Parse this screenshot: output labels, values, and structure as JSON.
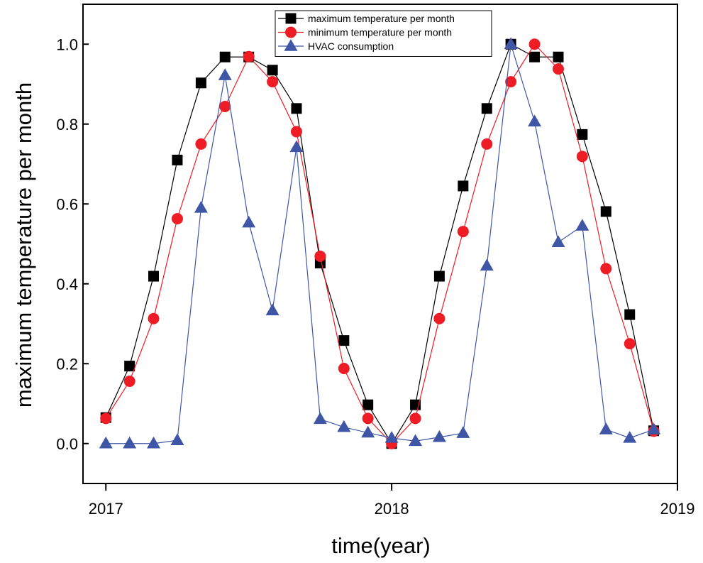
{
  "chart_data": {
    "type": "line",
    "title": "",
    "xlabel": "time(year)",
    "ylabel": "maximum temperature per month",
    "xlim": [
      2016.92,
      2019.0
    ],
    "ylim": [
      -0.1,
      1.1
    ],
    "x_ticks": [
      2017,
      2018,
      2019
    ],
    "x_tick_labels": [
      "2017",
      "2018",
      "2019"
    ],
    "y_ticks": [
      0.0,
      0.2,
      0.4,
      0.6,
      0.8,
      1.0
    ],
    "y_tick_labels": [
      "0.0",
      "0.2",
      "0.4",
      "0.6",
      "0.8",
      "1.0"
    ],
    "grid": false,
    "legend_position": "top-center",
    "x": [
      2017.0,
      2017.083,
      2017.167,
      2017.25,
      2017.333,
      2017.417,
      2017.5,
      2017.583,
      2017.667,
      2017.75,
      2017.833,
      2017.917,
      2018.0,
      2018.083,
      2018.167,
      2018.25,
      2018.333,
      2018.417,
      2018.5,
      2018.583,
      2018.667,
      2018.75,
      2018.833,
      2018.917
    ],
    "series": [
      {
        "name": "maximum temperature per month",
        "color": "#000000",
        "marker": "square",
        "values": [
          0.065,
          0.194,
          0.419,
          0.71,
          0.903,
          0.968,
          0.968,
          0.935,
          0.839,
          0.452,
          0.258,
          0.097,
          0.0,
          0.097,
          0.419,
          0.645,
          0.839,
          1.0,
          0.968,
          0.968,
          0.774,
          0.581,
          0.323,
          0.032
        ]
      },
      {
        "name": "minimum temperature per month",
        "color": "#ee1c25",
        "marker": "circle",
        "values": [
          0.063,
          0.156,
          0.313,
          0.563,
          0.75,
          0.844,
          0.969,
          0.906,
          0.781,
          0.469,
          0.188,
          0.063,
          0.0,
          0.063,
          0.313,
          0.531,
          0.75,
          0.906,
          1.0,
          0.938,
          0.719,
          0.438,
          0.25,
          0.031
        ]
      },
      {
        "name": "HVAC consumption",
        "color": "#3f56a6",
        "marker": "triangle",
        "values": [
          0.0,
          0.0,
          0.0,
          0.008,
          0.59,
          0.922,
          0.553,
          0.333,
          0.742,
          0.061,
          0.041,
          0.027,
          0.014,
          0.006,
          0.016,
          0.026,
          0.445,
          1.0,
          0.806,
          0.504,
          0.545,
          0.035,
          0.014,
          0.035
        ]
      }
    ]
  }
}
